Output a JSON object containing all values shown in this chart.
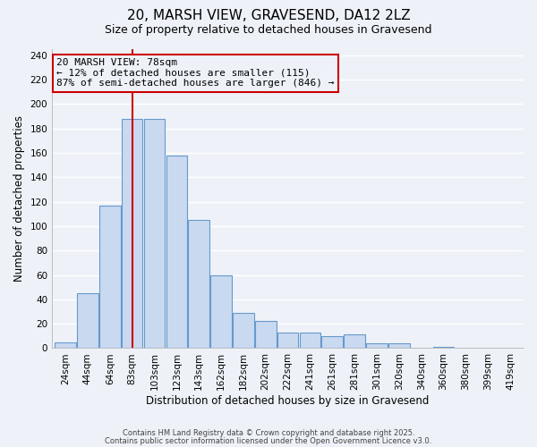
{
  "title": "20, MARSH VIEW, GRAVESEND, DA12 2LZ",
  "subtitle": "Size of property relative to detached houses in Gravesend",
  "xlabel": "Distribution of detached houses by size in Gravesend",
  "ylabel": "Number of detached properties",
  "bar_labels": [
    "24sqm",
    "44sqm",
    "64sqm",
    "83sqm",
    "103sqm",
    "123sqm",
    "143sqm",
    "162sqm",
    "182sqm",
    "202sqm",
    "222sqm",
    "241sqm",
    "261sqm",
    "281sqm",
    "301sqm",
    "320sqm",
    "340sqm",
    "360sqm",
    "380sqm",
    "399sqm",
    "419sqm"
  ],
  "bar_values": [
    5,
    45,
    117,
    188,
    188,
    158,
    105,
    60,
    29,
    22,
    13,
    13,
    10,
    11,
    4,
    4,
    0,
    1,
    0,
    0,
    0
  ],
  "bar_color": "#c9d9f0",
  "bar_edge_color": "#6699cc",
  "vline_index": 3,
  "vline_color": "#cc0000",
  "annotation_title": "20 MARSH VIEW: 78sqm",
  "annotation_line1": "← 12% of detached houses are smaller (115)",
  "annotation_line2": "87% of semi-detached houses are larger (846) →",
  "annotation_box_edge": "#cc0000",
  "ylim": [
    0,
    245
  ],
  "yticks": [
    0,
    20,
    40,
    60,
    80,
    100,
    120,
    140,
    160,
    180,
    200,
    220,
    240
  ],
  "footnote1": "Contains HM Land Registry data © Crown copyright and database right 2025.",
  "footnote2": "Contains public sector information licensed under the Open Government Licence v3.0.",
  "bg_color": "#eef2f8",
  "grid_color": "#ffffff",
  "title_fontsize": 11,
  "subtitle_fontsize": 9,
  "axis_label_fontsize": 8.5,
  "tick_fontsize": 7.5,
  "annotation_fontsize": 8
}
